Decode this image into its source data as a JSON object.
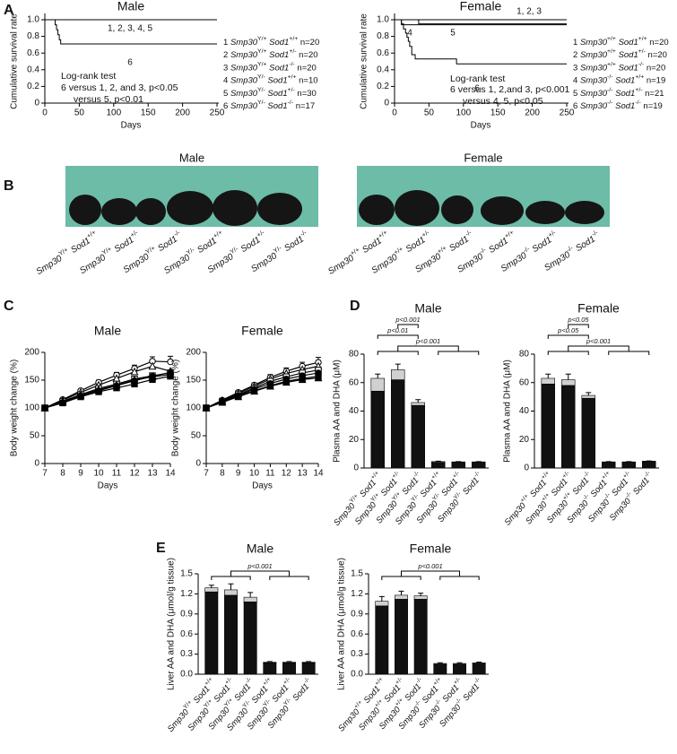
{
  "panel_labels": [
    "A",
    "B",
    "C",
    "D",
    "E"
  ],
  "photos": [
    {
      "title": "Male",
      "labels": [
        "Smp30Y/+ Sod1+/+",
        "Smp30Y/+ Sod1+/-",
        "Smp30Y/+ Sod1-/-",
        "Smp30Y/- Sod1+/+",
        "Smp30Y/- Sod1+/-",
        "Smp30Y/- Sod1-/-"
      ]
    },
    {
      "title": "Female",
      "labels": [
        "Smp30+/+ Sod1+/+",
        "Smp30+/+ Sod1+/-",
        "Smp30+/+ Sod1-/-",
        "Smp30-/- Sod1+/+",
        "Smp30-/- Sod1+/-",
        "Smp30-/- Sod1-/-"
      ]
    }
  ],
  "chart_data": [
    {
      "type": "survival",
      "title": "Male",
      "xlabel": "Days",
      "ylabel": "Cumulative survival rate",
      "color": "#000000",
      "xlim": [
        0,
        250
      ],
      "xticks": [
        0,
        50,
        100,
        150,
        200,
        250
      ],
      "ylim": [
        0,
        1
      ],
      "yticks": [
        0,
        0.2,
        0.4,
        0.6,
        0.8,
        {
          "value": 1,
          "label": "1.0"
        }
      ],
      "series": [
        {
          "name": "1, 2, 3, 4, 5",
          "x": [
            0,
            250
          ],
          "values": [
            1,
            1
          ]
        },
        {
          "name": "6",
          "x": [
            0,
            15,
            17,
            19,
            21,
            23,
            250
          ],
          "values": [
            1,
            0.94,
            0.88,
            0.82,
            0.76,
            0.71,
            0.71
          ]
        }
      ],
      "legend": [
        "1 Smp30Y/+ Sod1+/+ n=20",
        "2 Smp30Y/+ Sod1+/- n=20",
        "3 Smp30Y/+ Sod1-/- n=20",
        "4 Smp30Y/- Sod1+/+ n=10",
        "5 Smp30Y/- Sod1+/- n=30",
        "6 Smp30Y/- Sod1-/- n=17"
      ],
      "annotations": [
        "Log-rank test",
        "6 versus 1, 2, and 3,  p<0.05",
        "versus 5,  p<0.01"
      ]
    },
    {
      "type": "survival",
      "title": "Female",
      "xlabel": "Days",
      "ylabel": "Cumulative survival rate",
      "color": "#000000",
      "xlim": [
        0,
        250
      ],
      "xticks": [
        0,
        50,
        100,
        150,
        200,
        250
      ],
      "ylim": [
        0,
        1
      ],
      "yticks": [
        0,
        0.2,
        0.4,
        0.6,
        0.8,
        {
          "value": 1,
          "label": "1.0"
        }
      ],
      "series": [
        {
          "name": "1, 2, 3",
          "x": [
            0,
            250
          ],
          "values": [
            1,
            1
          ]
        },
        {
          "name": "4",
          "x": [
            0,
            10,
            250
          ],
          "values": [
            1,
            0.94,
            0.94
          ]
        },
        {
          "name": "5",
          "x": [
            0,
            35,
            250
          ],
          "values": [
            1,
            0.95,
            0.95
          ]
        },
        {
          "name": "6",
          "x": [
            0,
            10,
            13,
            16,
            18,
            20,
            22,
            25,
            30,
            90,
            250
          ],
          "values": [
            1,
            0.95,
            0.89,
            0.84,
            0.79,
            0.74,
            0.68,
            0.58,
            0.53,
            0.47,
            0.47
          ]
        }
      ],
      "legend": [
        "1 Smp30+/+ Sod1+/+ n=20",
        "2 Smp30+/+ Sod1+/- n=20",
        "3 Smp30+/+ Sod1-/- n=20",
        "4 Smp30-/- Sod1+/+ n=19",
        "5 Smp30-/- Sod1+/- n=21",
        "6 Smp30-/- Sod1-/- n=19"
      ],
      "annotations": [
        "Log-rank test",
        "6 versus 1, 2,and 3,  p<0.001",
        "versus 4, 5,  p<0.05"
      ]
    },
    {
      "type": "line",
      "title": "Male",
      "xlabel": "Days",
      "ylabel": "Body weight change (%)",
      "color": "#000000",
      "x": [
        7,
        8,
        9,
        10,
        11,
        12,
        13,
        14
      ],
      "xlim": [
        7,
        14
      ],
      "xticks": [
        7,
        8,
        9,
        10,
        11,
        12,
        13,
        14
      ],
      "ylim": [
        0,
        200
      ],
      "yticks": [
        0,
        50,
        100,
        150,
        200
      ],
      "series": [
        {
          "marker": "circle-open",
          "values": [
            100,
            115,
            131,
            146,
            159,
            171,
            184,
            183
          ],
          "errors": [
            0,
            2,
            3,
            4,
            5,
            6,
            8,
            10
          ]
        },
        {
          "marker": "triangle-open",
          "values": [
            100,
            114,
            128,
            141,
            153,
            165,
            175,
            166
          ]
        },
        {
          "marker": "square-open",
          "values": [
            100,
            112,
            124,
            135,
            143,
            152,
            158,
            163
          ]
        },
        {
          "marker": "circle",
          "values": [
            100,
            110,
            122,
            131,
            140,
            149,
            157,
            164
          ]
        },
        {
          "marker": "square",
          "values": [
            100,
            109,
            120,
            129,
            136,
            143,
            151,
            157
          ]
        },
        {
          "marker": "triangle",
          "values": [
            100,
            111,
            123,
            133,
            141,
            150,
            156,
            160
          ]
        }
      ]
    },
    {
      "type": "line",
      "title": "Female",
      "xlabel": "Days",
      "ylabel": "Body weight change (%)",
      "color": "#000000",
      "x": [
        7,
        8,
        9,
        10,
        11,
        12,
        13,
        14
      ],
      "xlim": [
        7,
        14
      ],
      "xticks": [
        7,
        8,
        9,
        10,
        11,
        12,
        13,
        14
      ],
      "ylim": [
        0,
        200
      ],
      "yticks": [
        0,
        50,
        100,
        150,
        200
      ],
      "series": [
        {
          "marker": "circle-open",
          "values": [
            100,
            114,
            128,
            141,
            155,
            166,
            175,
            182
          ],
          "errors": [
            0,
            2,
            3,
            4,
            5,
            6,
            7,
            9
          ]
        },
        {
          "marker": "triangle-open",
          "values": [
            100,
            113,
            126,
            139,
            152,
            162,
            169,
            175
          ]
        },
        {
          "marker": "square-open",
          "values": [
            100,
            112,
            124,
            136,
            148,
            156,
            163,
            168
          ]
        },
        {
          "marker": "circle",
          "values": [
            100,
            111,
            122,
            134,
            144,
            152,
            158,
            163
          ]
        },
        {
          "marker": "square",
          "values": [
            100,
            110,
            121,
            131,
            140,
            148,
            153,
            157
          ]
        },
        {
          "marker": "triangle",
          "values": [
            100,
            110,
            120,
            130,
            139,
            146,
            151,
            154
          ]
        }
      ]
    },
    {
      "type": "bar",
      "stacked": true,
      "title": "Male",
      "ylabel": "Plasma AA and DHA (μM)",
      "categories": [
        "Smp30Y/+ Sod1+/+",
        "Smp30Y/+ Sod1+/-",
        "Smp30Y/+ Sod1-/-",
        "Smp30Y/- Sod1+/+",
        "Smp30Y/- Sod1+/-",
        "Smp30Y/- Sod1-/-"
      ],
      "ylim": [
        0,
        80
      ],
      "yticks": [
        0,
        20,
        40,
        60,
        80
      ],
      "series": [
        {
          "color": "#111111",
          "values": [
            54,
            62,
            44,
            4,
            4,
            4
          ]
        },
        {
          "color": "#d0d0d0",
          "values": [
            9,
            7,
            2,
            0.5,
            0.3,
            0.3
          ],
          "errors": [
            3,
            4,
            2,
            0.3,
            0.2,
            0.2
          ]
        }
      ],
      "annotations": [
        "p<0.001",
        "p<0.01",
        "p<0.001"
      ]
    },
    {
      "type": "bar",
      "stacked": true,
      "title": "Female",
      "ylabel": "Plasma AA and DHA (μM)",
      "categories": [
        "Smp30+/+ Sod1+/+",
        "Smp30+/+ Sod1+/-",
        "Smp30+/+ Sod1-/-",
        "Smp30-/- Sod1+/+",
        "Smp30-/- Sod1+/-",
        "Smp30-/- Sod1-/-"
      ],
      "ylim": [
        0,
        80
      ],
      "yticks": [
        0,
        20,
        40,
        60,
        80
      ],
      "series": [
        {
          "color": "#111111",
          "values": [
            59,
            58,
            49,
            4,
            4,
            4.5
          ]
        },
        {
          "color": "#d0d0d0",
          "values": [
            4,
            4,
            2,
            0.3,
            0.3,
            0.3
          ],
          "errors": [
            3,
            4,
            2,
            0.2,
            0.2,
            0.2
          ]
        }
      ],
      "annotations": [
        "p<0.05",
        "p<0.05",
        "p<0.001"
      ]
    },
    {
      "type": "bar",
      "stacked": true,
      "title": "Male",
      "ylabel": "Liver AA and DHA (μmol/g tissue)",
      "categories": [
        "Smp30Y/+ Sod1+/+",
        "Smp30Y/+ Sod1+/-",
        "Smp30Y/+ Sod1-/-",
        "Smp30Y/- Sod1+/+",
        "Smp30Y/- Sod1+/-",
        "Smp30Y/- Sod1-/-"
      ],
      "ylim": [
        0,
        1.5
      ],
      "yticks": [
        {
          "value": 0,
          "label": "0.0"
        },
        0.3,
        0.6,
        0.9,
        1.2,
        1.5
      ],
      "series": [
        {
          "color": "#111111",
          "values": [
            1.23,
            1.18,
            1.08,
            0.17,
            0.17,
            0.17
          ]
        },
        {
          "color": "#d0d0d0",
          "values": [
            0.06,
            0.08,
            0.07,
            0.01,
            0.01,
            0.01
          ],
          "errors": [
            0.04,
            0.09,
            0.07,
            0.01,
            0.01,
            0.01
          ]
        }
      ],
      "annotations": [
        "p<0.001"
      ]
    },
    {
      "type": "bar",
      "stacked": true,
      "title": "Female",
      "ylabel": "Liver AA and DHA (μmol/g tissue)",
      "categories": [
        "Smp30+/+ Sod1+/+",
        "Smp30+/+ Sod1+/-",
        "Smp30+/+ Sod1-/-",
        "Smp30-/- Sod1+/+",
        "Smp30-/- Sod1+/-",
        "Smp30-/- Sod1-/-"
      ],
      "ylim": [
        0,
        1.5
      ],
      "yticks": [
        {
          "value": 0,
          "label": "0.0"
        },
        0.3,
        0.6,
        0.9,
        1.2,
        1.5
      ],
      "series": [
        {
          "color": "#111111",
          "values": [
            1.02,
            1.12,
            1.12,
            0.15,
            0.15,
            0.16
          ]
        },
        {
          "color": "#d0d0d0",
          "values": [
            0.07,
            0.06,
            0.05,
            0.01,
            0.01,
            0.01
          ],
          "errors": [
            0.07,
            0.06,
            0.04,
            0.01,
            0.01,
            0.01
          ]
        }
      ],
      "annotations": [
        "p<0.001"
      ]
    }
  ]
}
